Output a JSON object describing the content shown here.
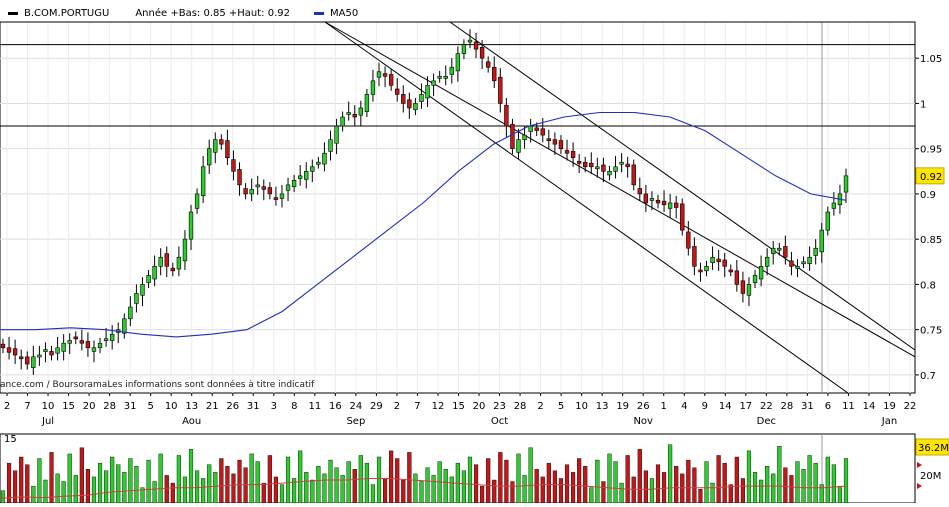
{
  "chart_data": [
    {
      "type": "candlestick",
      "symbol": "B.COM.PORTUGU",
      "legend": {
        "info": "Année +Bas: 0.85 +Haut: 0.92",
        "ma_label": "MA50"
      },
      "attribution": "ance.com / BoursoramaLes informations sont données à titre indicatif",
      "ylim": [
        0.68,
        1.09
      ],
      "yticks": [
        "1.05",
        "1",
        "0.95",
        "0.9",
        "0.85",
        "0.8",
        "0.75",
        "0.7"
      ],
      "ytick_values": [
        1.05,
        1.0,
        0.95,
        0.9,
        0.85,
        0.8,
        0.75,
        0.7
      ],
      "last_price_label": "0.92",
      "last_price": 0.92,
      "horizontal_lines": [
        1.09,
        1.065,
        0.975
      ],
      "x_day_labels": [
        "2",
        "7",
        "10",
        "15",
        "20",
        "28",
        "31",
        "5",
        "10",
        "13",
        "21",
        "26",
        "31",
        "3",
        "8",
        "11",
        "16",
        "24",
        "29",
        "2",
        "7",
        "12",
        "15",
        "20",
        "23",
        "28",
        "2",
        "5",
        "10",
        "13",
        "19",
        "26",
        "1",
        "4",
        "9",
        "14",
        "17",
        "22",
        "28",
        "31",
        "6",
        "11",
        "14",
        "19",
        "22"
      ],
      "x_month_labels": [
        "Jul",
        "Aou",
        "Sep",
        "Oct",
        "Nov",
        "Dec",
        "Jan"
      ],
      "trend_channel": {
        "upper": [
          [
            "2006-07-24",
            1.06
          ],
          [
            "2006-12-22",
            0.73
          ]
        ],
        "lower": [
          [
            "2006-06-22",
            1.25
          ],
          [
            "2006-12-13",
            0.68
          ]
        ]
      },
      "ma50": [
        0.75,
        0.75,
        0.752,
        0.75,
        0.745,
        0.742,
        0.745,
        0.75,
        0.77,
        0.8,
        0.83,
        0.86,
        0.89,
        0.925,
        0.955,
        0.975,
        0.985,
        0.99,
        0.99,
        0.985,
        0.97,
        0.945,
        0.92,
        0.9,
        0.893
      ],
      "closes": [
        0.73,
        0.725,
        0.722,
        0.718,
        0.712,
        0.72,
        0.722,
        0.728,
        0.722,
        0.73,
        0.735,
        0.738,
        0.74,
        0.735,
        0.73,
        0.73,
        0.735,
        0.74,
        0.745,
        0.75,
        0.762,
        0.775,
        0.79,
        0.8,
        0.81,
        0.82,
        0.83,
        0.82,
        0.815,
        0.83,
        0.85,
        0.88,
        0.9,
        0.93,
        0.95,
        0.96,
        0.955,
        0.94,
        0.925,
        0.91,
        0.9,
        0.905,
        0.91,
        0.905,
        0.9,
        0.895,
        0.9,
        0.91,
        0.915,
        0.92,
        0.925,
        0.93,
        0.935,
        0.945,
        0.96,
        0.975,
        0.985,
        0.99,
        0.985,
        0.995,
        1.01,
        1.025,
        1.035,
        1.03,
        1.02,
        1.01,
        1.0,
        0.995,
        1.0,
        1.01,
        1.02,
        1.025,
        1.03,
        1.03,
        1.04,
        1.055,
        1.065,
        1.07,
        1.06,
        1.05,
        1.04,
        1.025,
        1.0,
        0.975,
        0.95,
        0.96,
        0.965,
        0.975,
        0.97,
        0.965,
        0.96,
        0.955,
        0.95,
        0.945,
        0.94,
        0.935,
        0.93,
        0.93,
        0.93,
        0.925,
        0.925,
        0.93,
        0.935,
        0.93,
        0.91,
        0.9,
        0.89,
        0.895,
        0.89,
        0.888,
        0.89,
        0.885,
        0.86,
        0.84,
        0.82,
        0.815,
        0.82,
        0.83,
        0.825,
        0.82,
        0.815,
        0.8,
        0.79,
        0.8,
        0.81,
        0.82,
        0.83,
        0.84,
        0.84,
        0.83,
        0.82,
        0.82,
        0.825,
        0.83,
        0.84,
        0.86,
        0.88,
        0.89,
        0.9,
        0.92
      ],
      "volume_ylim": [
        0,
        45
      ],
      "volume_tick_labels": [
        "15",
        "20M",
        "36.2M"
      ],
      "volume_last_label": "36.2M",
      "volume_ma": [
        3,
        4,
        3.5,
        4.5,
        5,
        7,
        8,
        9,
        10,
        10,
        11,
        12,
        12,
        13,
        14,
        15,
        15,
        16,
        16,
        15,
        14,
        13,
        12,
        11,
        11,
        12,
        12,
        11,
        10,
        9,
        9,
        10,
        10,
        10,
        11,
        11,
        11,
        10,
        10,
        11
      ]
    }
  ]
}
